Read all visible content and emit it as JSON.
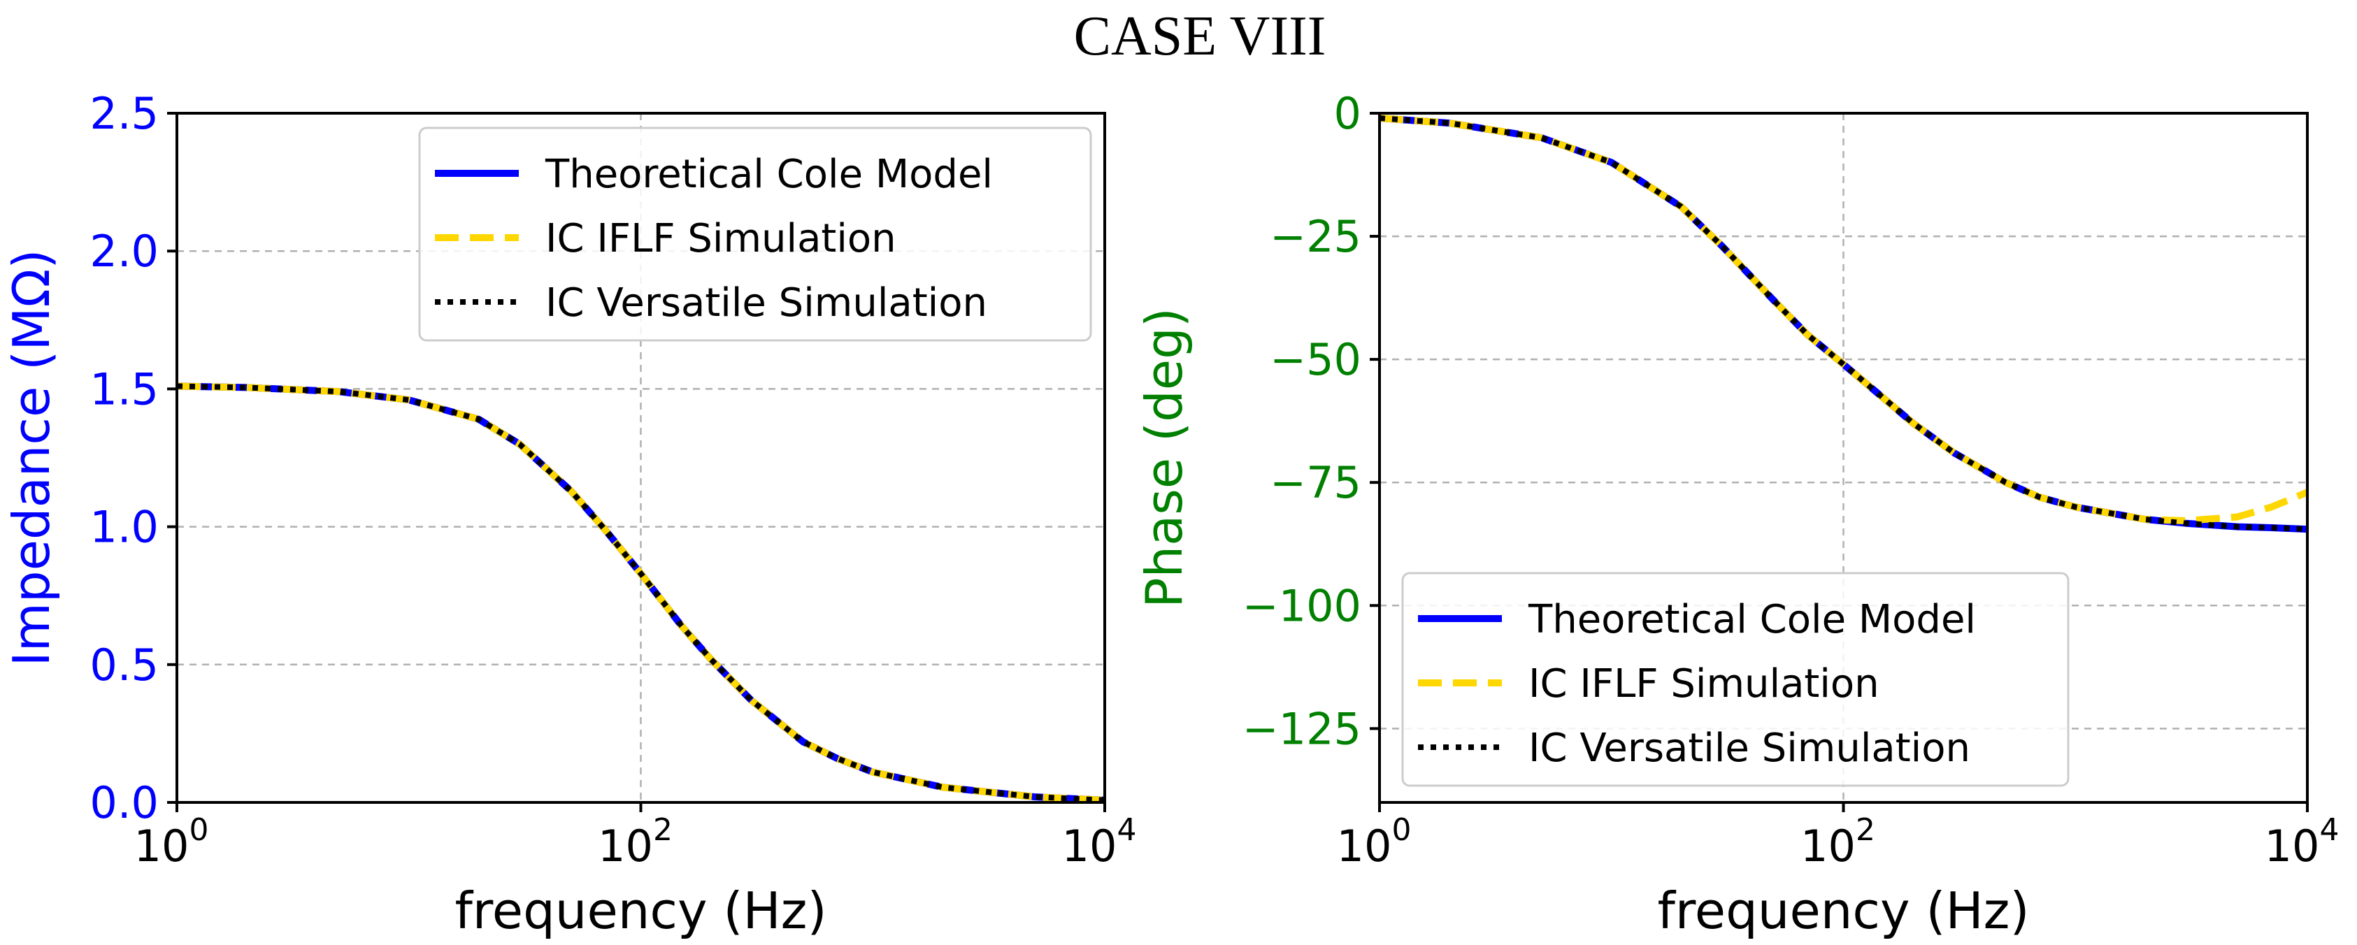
{
  "figure_title": "CASE VIII",
  "colors": {
    "theoretical": "#0000ff",
    "iflf": "#ffd700",
    "versatile": "#000000",
    "left_axis_label": "#0000ff",
    "right_axis_label": "#008000"
  },
  "chart_data": [
    {
      "type": "line",
      "title": "",
      "xlabel": "frequency (Hz)",
      "ylabel": "Impedance (MΩ)",
      "x_scale": "log",
      "xlim": [
        1,
        10000
      ],
      "ylim": [
        0,
        2.5
      ],
      "x_ticks": [
        {
          "value": 1,
          "base": "10",
          "exp": "0"
        },
        {
          "value": 100,
          "base": "10",
          "exp": "2"
        },
        {
          "value": 10000,
          "base": "10",
          "exp": "4"
        }
      ],
      "y_ticks": [
        {
          "value": 0,
          "label": "0.0"
        },
        {
          "value": 0.5,
          "label": "0.5"
        },
        {
          "value": 1.0,
          "label": "1.0"
        },
        {
          "value": 1.5,
          "label": "1.5"
        },
        {
          "value": 2.0,
          "label": "2.0"
        },
        {
          "value": 2.5,
          "label": "2.5"
        }
      ],
      "grid": true,
      "legend_position": "upper right",
      "x": [
        1,
        2,
        5,
        10,
        20,
        30,
        50,
        70,
        100,
        150,
        200,
        300,
        500,
        700,
        1000,
        2000,
        5000,
        10000
      ],
      "series": [
        {
          "name": "Theoretical Cole Model",
          "style": "solid",
          "values": [
            1.51,
            1.505,
            1.49,
            1.46,
            1.39,
            1.3,
            1.13,
            0.99,
            0.83,
            0.64,
            0.52,
            0.37,
            0.22,
            0.16,
            0.11,
            0.055,
            0.02,
            0.008
          ]
        },
        {
          "name": "IC IFLF Simulation",
          "style": "dashed",
          "values": [
            1.51,
            1.505,
            1.49,
            1.46,
            1.39,
            1.3,
            1.13,
            0.99,
            0.83,
            0.64,
            0.52,
            0.37,
            0.22,
            0.16,
            0.11,
            0.055,
            0.02,
            0.008
          ]
        },
        {
          "name": "IC Versatile Simulation",
          "style": "dotted",
          "values": [
            1.51,
            1.505,
            1.49,
            1.46,
            1.39,
            1.3,
            1.13,
            0.99,
            0.83,
            0.64,
            0.52,
            0.37,
            0.22,
            0.16,
            0.11,
            0.055,
            0.02,
            0.008
          ]
        }
      ]
    },
    {
      "type": "line",
      "title": "",
      "xlabel": "frequency (Hz)",
      "ylabel": "Phase (deg)",
      "x_scale": "log",
      "xlim": [
        1,
        10000
      ],
      "ylim": [
        -140,
        0
      ],
      "x_ticks": [
        {
          "value": 1,
          "base": "10",
          "exp": "0"
        },
        {
          "value": 100,
          "base": "10",
          "exp": "2"
        },
        {
          "value": 10000,
          "base": "10",
          "exp": "4"
        }
      ],
      "y_ticks": [
        {
          "value": 0,
          "label": "0"
        },
        {
          "value": -25,
          "label": "−25"
        },
        {
          "value": -50,
          "label": "−50"
        },
        {
          "value": -75,
          "label": "−75"
        },
        {
          "value": -100,
          "label": "−100"
        },
        {
          "value": -125,
          "label": "−125"
        }
      ],
      "grid": true,
      "legend_position": "lower right",
      "x": [
        1,
        2,
        5,
        10,
        20,
        30,
        50,
        70,
        100,
        150,
        200,
        300,
        500,
        700,
        1000,
        2000,
        3000,
        5000,
        7000,
        10000
      ],
      "series": [
        {
          "name": "Theoretical Cole Model",
          "style": "solid",
          "values": [
            -1,
            -2,
            -5,
            -10,
            -19,
            -27,
            -38,
            -45,
            -51,
            -58,
            -63,
            -69,
            -75,
            -78,
            -80,
            -82.5,
            -83.3,
            -84,
            -84.2,
            -84.5
          ]
        },
        {
          "name": "IC IFLF Simulation",
          "style": "dashed",
          "values": [
            -1,
            -2,
            -5,
            -10,
            -19,
            -27,
            -38,
            -45,
            -51,
            -58,
            -63,
            -69,
            -75,
            -78,
            -80,
            -82.5,
            -82.8,
            -82,
            -80,
            -77
          ]
        },
        {
          "name": "IC Versatile Simulation",
          "style": "dotted",
          "values": [
            -1,
            -2,
            -5,
            -10,
            -19,
            -27,
            -38,
            -45,
            -51,
            -58,
            -63,
            -69,
            -75,
            -78,
            -80,
            -82.5,
            -83.3,
            -84,
            -84.2,
            -84.5
          ]
        }
      ]
    }
  ]
}
